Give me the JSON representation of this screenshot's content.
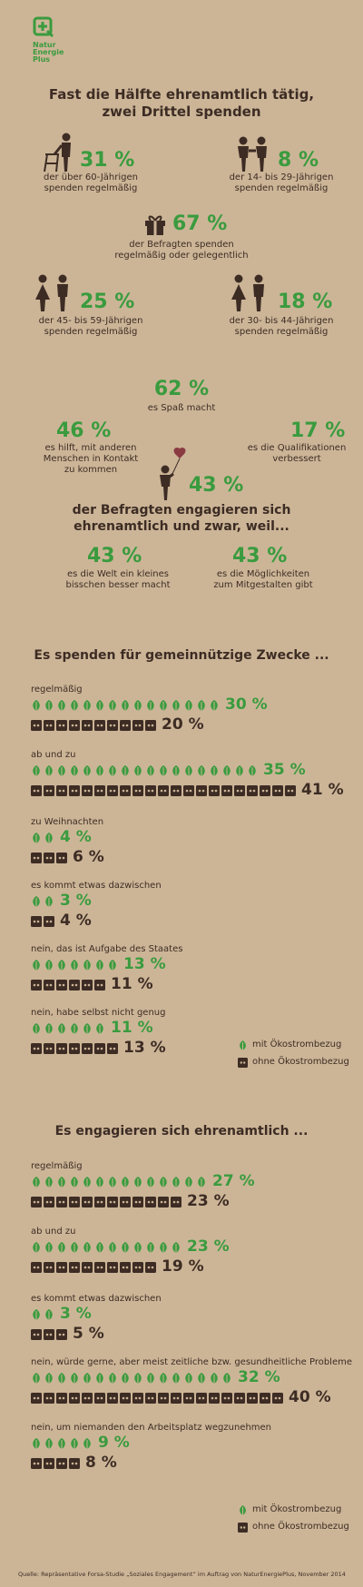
{
  "brand": {
    "name_line1": "Natur",
    "name_line2": "Energie",
    "name_line3": "Plus",
    "color": "#3a9b3e"
  },
  "colors": {
    "background": "#ccb597",
    "green": "#3a9b3e",
    "brown": "#3d2c24"
  },
  "header": {
    "title_line1": "Fast die Hälfte ehrenamtlich tätig,",
    "title_line2": "zwei Drittel spenden"
  },
  "donor_stats": {
    "over60": {
      "value": "31 %",
      "line1": "der über 60-Jährigen",
      "line2": "spenden regelmäßig",
      "icon": "elderly-with-walker-icon"
    },
    "age14_29": {
      "value": "8 %",
      "line1": "der 14- bis 29-Jährigen",
      "line2": "spenden regelmäßig",
      "icon": "young-couple-icon"
    },
    "overall": {
      "value": "67 %",
      "line1": "der Befragten spenden",
      "line2": "regelmäßig oder gelegentlich",
      "icon": "gift-icon"
    },
    "age45_59": {
      "value": "25 %",
      "line1": "der 45- bis 59-Jährigen",
      "line2": "spenden regelmäßig",
      "icon": "couple-icon"
    },
    "age30_44": {
      "value": "18 %",
      "line1": "der 30- bis 44-Jährigen",
      "line2": "spenden regelmäßig",
      "icon": "couple-icon"
    }
  },
  "volunteer_reasons": {
    "fun": {
      "value": "62 %",
      "line1": "es Spaß macht"
    },
    "contact": {
      "value": "46 %",
      "line1": "es hilft, mit anderen",
      "line2": "Menschen in Kontakt",
      "line3": "zu kommen"
    },
    "qualifications": {
      "value": "17 %",
      "line1": "es die Qualifikationen",
      "line2": "verbessert"
    },
    "center": {
      "value": "43 %",
      "line1": "der Befragten engagieren sich",
      "line2": "ehrenamtlich und zwar, weil...",
      "icon": "person-with-heart-balloon-icon"
    },
    "better_world": {
      "value": "43 %",
      "line1": "es die Welt ein kleines",
      "line2": "bisschen besser macht"
    },
    "participation": {
      "value": "43 %",
      "line1": "es die Möglichkeiten",
      "line2": "zum Mitgestalten gibt"
    }
  },
  "legend": {
    "with_label": "mit Ökostrombezug",
    "without_label": "ohne Ökostrombezug"
  },
  "footer": {
    "source": "Quelle: Repräsentative Forsa-Studie „Soziales Engagement“ im Auftrag von NaturEnergiePlus, November 2014"
  },
  "chart_data": [
    {
      "type": "bar",
      "title": "Es spenden für gemeinnützige Zwecke ...",
      "categories": [
        "regelmäßig",
        "ab und zu",
        "zu Weihnachten",
        "es kommt etwas dazwischen",
        "nein, das ist Aufgabe des Staates",
        "nein, habe selbst nicht genug"
      ],
      "series": [
        {
          "name": "mit Ökostrombezug",
          "values": [
            30,
            35,
            4,
            3,
            13,
            11
          ],
          "labels": [
            "30 %",
            "35 %",
            "4 %",
            "3 %",
            "13 %",
            "11 %"
          ],
          "icon": "leaf-icon"
        },
        {
          "name": "ohne Ökostrombezug",
          "values": [
            20,
            41,
            6,
            4,
            11,
            13
          ],
          "labels": [
            "20 %",
            "41 %",
            "6 %",
            "4 %",
            "11 %",
            "13 %"
          ],
          "icon": "plug-icon"
        }
      ]
    },
    {
      "type": "bar",
      "title": "Es engagieren sich ehrenamtlich ...",
      "categories": [
        "regelmäßig",
        "ab und zu",
        "es kommt etwas dazwischen",
        "nein, würde gerne, aber meist zeitliche bzw. gesundheitliche Probleme",
        "nein, um niemanden den Arbeitsplatz wegzunehmen"
      ],
      "series": [
        {
          "name": "mit Ökostrombezug",
          "values": [
            27,
            23,
            3,
            32,
            9
          ],
          "labels": [
            "27 %",
            "23 %",
            "3 %",
            "32 %",
            "9 %"
          ],
          "icon": "leaf-icon"
        },
        {
          "name": "ohne Ökostrombezug",
          "values": [
            23,
            19,
            5,
            40,
            8
          ],
          "labels": [
            "23 %",
            "19 %",
            "5 %",
            "40 %",
            "8 %"
          ],
          "icon": "plug-icon"
        }
      ]
    }
  ]
}
